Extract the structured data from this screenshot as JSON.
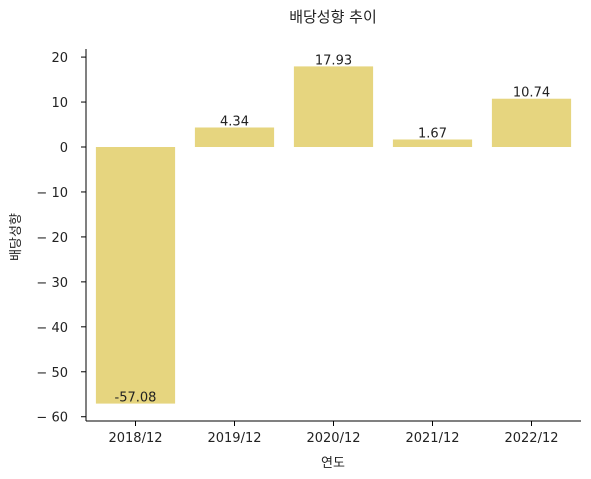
{
  "chart_data": {
    "type": "bar",
    "title": "배당성향 추이",
    "xlabel": "연도",
    "ylabel": "배당성향",
    "categories": [
      "2018/12",
      "2019/12",
      "2020/12",
      "2021/12",
      "2022/12"
    ],
    "values": [
      -57.08,
      4.34,
      17.93,
      1.67,
      10.74
    ],
    "data_labels": [
      "-57.08",
      "4.34",
      "17.93",
      "1.67",
      "10.74"
    ],
    "yticks": [
      20,
      10,
      0,
      -10,
      -20,
      -30,
      -40,
      -50,
      -60
    ],
    "ytick_labels": [
      "20",
      "10",
      "0",
      "− 10",
      "− 20",
      "− 30",
      "− 40",
      "− 50",
      "− 60"
    ],
    "ylim": [
      -60.95,
      21.8
    ],
    "bar_color": "#e6d57f",
    "grid": false,
    "legend": "none"
  }
}
